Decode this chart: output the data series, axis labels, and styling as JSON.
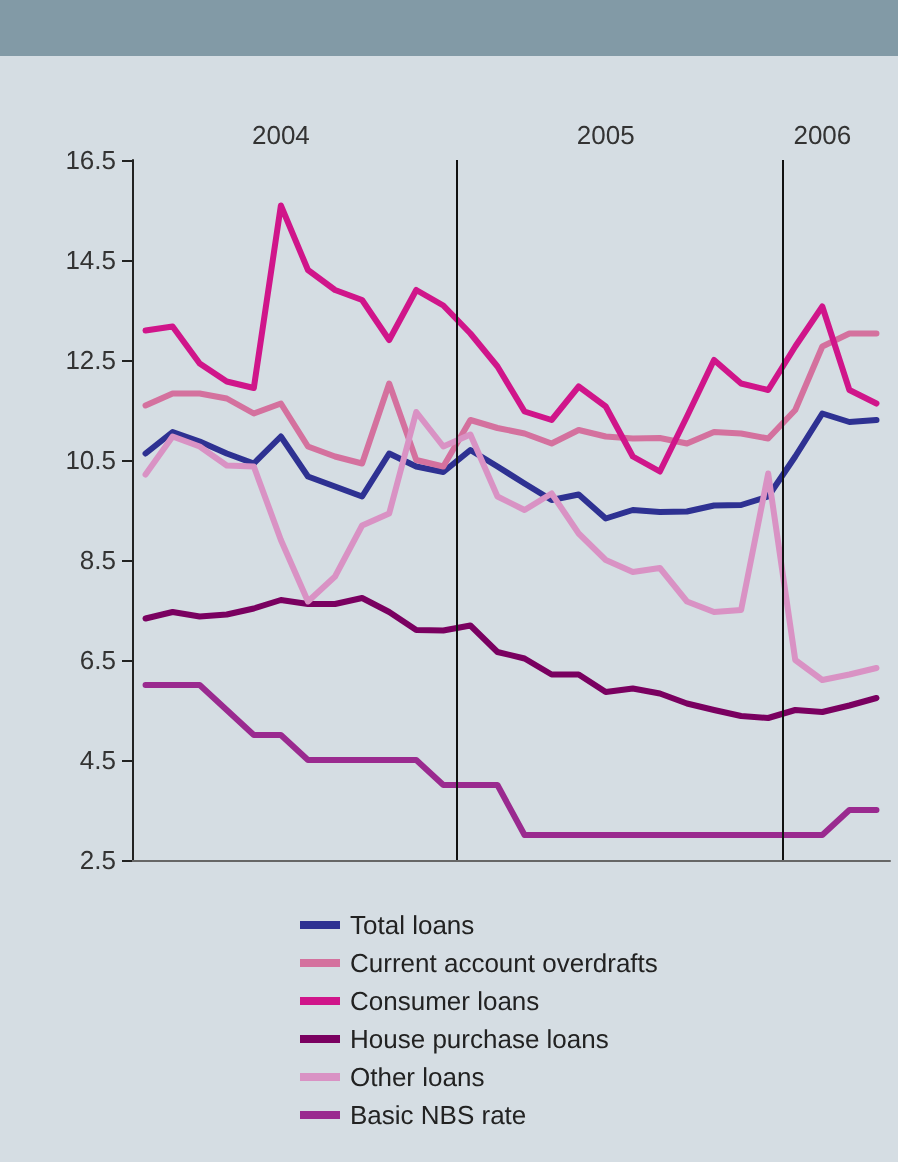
{
  "chart_data": {
    "type": "line",
    "categories": [
      null,
      null,
      null,
      null,
      null,
      "2004",
      null,
      null,
      null,
      null,
      null,
      null,
      null,
      null,
      null,
      null,
      null,
      "2005",
      null,
      null,
      null,
      null,
      null,
      null,
      null,
      "2006",
      null,
      null
    ],
    "ylim": [
      2.5,
      16.5
    ],
    "yticks": [
      2.5,
      4.5,
      6.5,
      8.5,
      10.5,
      12.5,
      14.5,
      16.5
    ],
    "tick_labels": "y",
    "grid": false,
    "legend": "bottom",
    "marker": "none",
    "line_style": "solid",
    "series": [
      {
        "name": "Total loans",
        "color": "#2e3192",
        "values": [
          10.63,
          11.06,
          10.87,
          10.63,
          10.43,
          10.97,
          10.17,
          9.97,
          9.77,
          10.63,
          10.37,
          10.26,
          10.7,
          10.37,
          10.03,
          9.7,
          9.81,
          9.33,
          9.5,
          9.46,
          9.47,
          9.59,
          9.6,
          9.77,
          10.57,
          11.43,
          11.26,
          11.3
        ]
      },
      {
        "name": "Current account overdrafts",
        "color": "#d4719e",
        "values": [
          11.59,
          11.83,
          11.83,
          11.73,
          11.43,
          11.63,
          10.77,
          10.57,
          10.43,
          12.03,
          10.5,
          10.37,
          11.3,
          11.14,
          11.03,
          10.83,
          11.1,
          10.97,
          10.93,
          10.94,
          10.83,
          11.06,
          11.03,
          10.93,
          11.5,
          12.77,
          13.03,
          13.03
        ]
      },
      {
        "name": "Consumer loans",
        "color": "#d0158a",
        "values": [
          13.09,
          13.17,
          12.43,
          12.07,
          11.94,
          15.59,
          14.3,
          13.9,
          13.7,
          12.9,
          13.9,
          13.59,
          13.03,
          12.37,
          11.47,
          11.3,
          11.97,
          11.57,
          10.57,
          10.27,
          11.37,
          12.5,
          12.03,
          11.9,
          12.77,
          13.57,
          11.9,
          11.63
        ]
      },
      {
        "name": "House purchase loans",
        "color": "#7a0060",
        "values": [
          7.33,
          7.46,
          7.37,
          7.41,
          7.53,
          7.7,
          7.62,
          7.62,
          7.74,
          7.46,
          7.1,
          7.09,
          7.19,
          6.66,
          6.53,
          6.21,
          6.21,
          5.86,
          5.93,
          5.83,
          5.63,
          5.5,
          5.38,
          5.34,
          5.5,
          5.46,
          5.59,
          5.74
        ]
      },
      {
        "name": "Other loans",
        "color": "#d992c4",
        "values": [
          10.21,
          10.97,
          10.77,
          10.39,
          10.37,
          8.9,
          7.67,
          8.17,
          9.19,
          9.43,
          11.46,
          10.77,
          11.01,
          9.77,
          9.5,
          9.83,
          9.03,
          8.5,
          8.26,
          8.34,
          7.67,
          7.46,
          7.5,
          10.23,
          6.5,
          6.1,
          6.21,
          6.34
        ]
      },
      {
        "name": "Basic NBS rate",
        "color": "#9a2a8f",
        "values": [
          6,
          6,
          6,
          5.5,
          5,
          5,
          4.5,
          4.5,
          4.5,
          4.5,
          4.5,
          4,
          4,
          4,
          3,
          3,
          3,
          3,
          3,
          3,
          3,
          3,
          3,
          3,
          3,
          3,
          3.5,
          3.5
        ]
      }
    ]
  }
}
